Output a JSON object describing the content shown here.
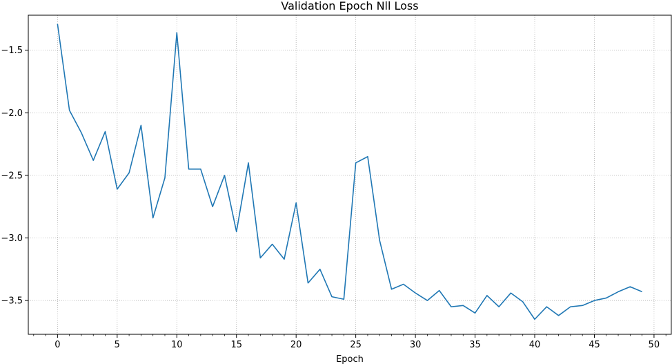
{
  "chart_data": {
    "type": "line",
    "title": "Validation Epoch Nll Loss",
    "xlabel": "Epoch",
    "ylabel": "",
    "xlim": [
      -2.45,
      51.45
    ],
    "ylim": [
      -3.77,
      -1.22
    ],
    "grid": true,
    "x_ticks": [
      0,
      5,
      10,
      15,
      20,
      25,
      30,
      35,
      40,
      45,
      50
    ],
    "y_ticks": [
      -1.5,
      -2.0,
      -2.5,
      -3.0,
      -3.5
    ],
    "x_tick_labels": [
      "0",
      "5",
      "10",
      "15",
      "20",
      "25",
      "30",
      "35",
      "40",
      "45",
      "50"
    ],
    "y_tick_labels": [
      "−1.5",
      "−2.0",
      "−2.5",
      "−3.0",
      "−3.5"
    ],
    "series": [
      {
        "color": "#1f77b4",
        "x": [
          0,
          1,
          2,
          3,
          4,
          5,
          6,
          7,
          8,
          9,
          10,
          11,
          12,
          13,
          14,
          15,
          16,
          17,
          18,
          19,
          20,
          21,
          22,
          23,
          24,
          25,
          26,
          27,
          28,
          29,
          30,
          31,
          32,
          33,
          34,
          35,
          36,
          37,
          38,
          39,
          40,
          41,
          42,
          43,
          44,
          45,
          46,
          47,
          48,
          49
        ],
        "values": [
          -1.29,
          -1.98,
          -2.16,
          -2.38,
          -2.15,
          -2.61,
          -2.48,
          -2.1,
          -2.84,
          -2.52,
          -1.36,
          -2.45,
          -2.45,
          -2.75,
          -2.5,
          -2.95,
          -2.4,
          -3.16,
          -3.05,
          -3.17,
          -2.72,
          -3.36,
          -3.25,
          -3.47,
          -3.49,
          -2.4,
          -2.35,
          -3.02,
          -3.41,
          -3.37,
          -3.44,
          -3.5,
          -3.42,
          -3.55,
          -3.54,
          -3.6,
          -3.46,
          -3.55,
          -3.44,
          -3.51,
          -3.65,
          -3.55,
          -3.62,
          -3.55,
          -3.54,
          -3.5,
          -3.48,
          -3.43,
          -3.39,
          -3.43
        ]
      }
    ]
  }
}
